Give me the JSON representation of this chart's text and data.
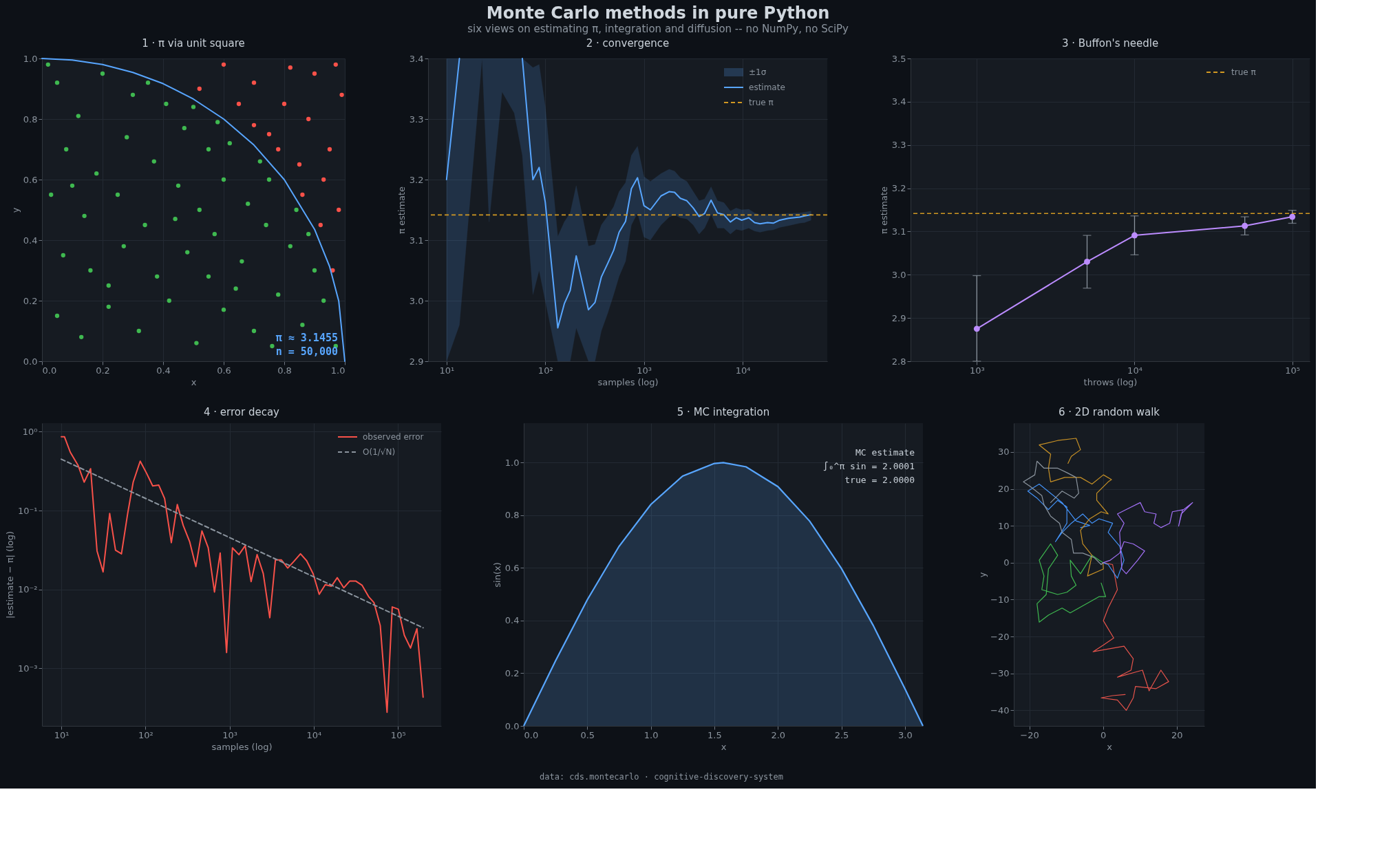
{
  "chart_data": [
    {
      "type": "other",
      "title": "Monte Carlo methods in pure Python",
      "subtitle": "six views on estimating π, integration and diffusion -- no NumPy, no SciPy",
      "annotations": [
        "data: cds.montecarlo  ·  cognitive-discovery-system"
      ]
    },
    {
      "type": "scatter",
      "title": "1 · π via unit square",
      "xlabel": "x",
      "ylabel": "y",
      "xlim": [
        0,
        1
      ],
      "ylim": [
        0,
        1
      ],
      "xticks": [
        {
          "value": 0,
          "label": "0.0"
        },
        0.2,
        0.4,
        0.6,
        0.8,
        {
          "value": 1,
          "label": "1.0"
        }
      ],
      "yticks": [
        {
          "value": 0,
          "label": "0.0"
        },
        0.2,
        0.4,
        0.6,
        0.8,
        {
          "value": 1,
          "label": "1.0"
        }
      ],
      "grid": true,
      "annotations": [
        "π ≈ 3.1455",
        "n = 50,000"
      ],
      "series": [
        {
          "color": "#3fb950",
          "x": [
            0.05,
            0.12,
            0.2,
            0.3,
            0.41,
            0.08,
            0.18,
            0.28,
            0.37,
            0.47,
            0.55,
            0.62,
            0.03,
            0.14,
            0.25,
            0.34,
            0.45,
            0.52,
            0.6,
            0.68,
            0.75,
            0.07,
            0.16,
            0.27,
            0.38,
            0.48,
            0.57,
            0.66,
            0.74,
            0.82,
            0.88,
            0.05,
            0.13,
            0.22,
            0.32,
            0.42,
            0.51,
            0.6,
            0.7,
            0.78,
            0.86,
            0.93,
            0.97,
            0.9,
            0.84,
            0.72,
            0.58,
            0.5,
            0.02,
            0.35,
            0.22,
            0.44,
            0.64,
            0.1,
            0.76,
            0.55
          ],
          "values": [
            0.92,
            0.81,
            0.95,
            0.88,
            0.85,
            0.7,
            0.62,
            0.74,
            0.66,
            0.77,
            0.7,
            0.72,
            0.55,
            0.48,
            0.55,
            0.45,
            0.58,
            0.5,
            0.6,
            0.52,
            0.6,
            0.35,
            0.3,
            0.38,
            0.28,
            0.36,
            0.42,
            0.33,
            0.45,
            0.38,
            0.42,
            0.15,
            0.08,
            0.18,
            0.1,
            0.2,
            0.06,
            0.17,
            0.1,
            0.22,
            0.12,
            0.2,
            0.05,
            0.3,
            0.5,
            0.66,
            0.79,
            0.84,
            0.98,
            0.92,
            0.25,
            0.47,
            0.24,
            0.58,
            0.05,
            0.28
          ]
        },
        {
          "color": "#f85149",
          "x": [
            0.9,
            0.8,
            0.7,
            0.95,
            0.85,
            0.98,
            0.92,
            0.6,
            0.75,
            0.88,
            0.96,
            0.65,
            0.82,
            0.99,
            0.93,
            0.78,
            0.52,
            0.97,
            0.86,
            0.7
          ],
          "values": [
            0.95,
            0.85,
            0.92,
            0.7,
            0.65,
            0.5,
            0.45,
            0.98,
            0.75,
            0.8,
            0.3,
            0.85,
            0.97,
            0.88,
            0.6,
            0.7,
            0.9,
            0.98,
            0.55,
            0.78
          ]
        },
        {
          "type": "line",
          "color": "#58a6ff",
          "x": [
            0,
            0.1,
            0.2,
            0.3,
            0.4,
            0.5,
            0.6,
            0.7,
            0.8,
            0.9,
            0.95,
            0.98,
            1.0
          ],
          "values": [
            1,
            0.995,
            0.98,
            0.954,
            0.917,
            0.866,
            0.8,
            0.714,
            0.6,
            0.436,
            0.312,
            0.199,
            0
          ]
        }
      ]
    },
    {
      "type": "line",
      "title": "2 · convergence",
      "xlabel": "samples (log)",
      "ylabel": "π estimate",
      "log": "x",
      "xlim": [
        6.5,
        72000
      ],
      "ylim": [
        2.9,
        3.4
      ],
      "xticks": [
        {
          "value": 10,
          "label": "10¹"
        },
        {
          "value": 100,
          "label": "10²"
        },
        {
          "value": 1000,
          "label": "10³"
        },
        {
          "value": 10000,
          "label": "10⁴"
        }
      ],
      "yticks": [
        2.9,
        {
          "value": 3,
          "label": "3.0"
        },
        3.1,
        3.2,
        3.3,
        3.4
      ],
      "grid": true,
      "legend": "top right",
      "annotations": [
        "±1σ"
      ],
      "x": [
        10,
        13.5,
        22.9,
        27,
        36.5,
        48.5,
        58.6,
        75,
        86.7,
        100,
        134,
        156,
        179,
        206,
        274,
        319,
        370,
        431,
        493,
        560,
        651,
        746,
        861,
        1000,
        1162,
        1489,
        1799,
        2043,
        2339,
        2722,
        3162,
        3622,
        4115,
        4786,
        5559,
        6457,
        7510,
        8600,
        9780,
        11530,
        13200,
        15000,
        17860,
        20430,
        23770,
        29110,
        37880,
        42400,
        49300
      ],
      "series": [
        {
          "name": "estimate",
          "color": "#58a6ff",
          "upper": [
            3.4,
            3.4,
            3.4,
            3.4,
            3.4,
            3.4,
            3.4,
            3.385,
            3.39,
            3.321,
            3.106,
            3.13,
            3.145,
            3.19,
            3.09,
            3.093,
            3.125,
            3.14,
            3.155,
            3.18,
            3.195,
            3.24,
            3.255,
            3.205,
            3.197,
            3.21,
            3.217,
            3.214,
            3.203,
            3.197,
            3.18,
            3.165,
            3.168,
            3.188,
            3.165,
            3.162,
            3.148,
            3.153,
            3.15,
            3.151,
            3.145,
            3.142,
            3.143,
            3.142,
            3.143,
            3.144,
            3.145,
            3.146,
            3.148
          ],
          "lower": [
            2.9,
            2.96,
            3.4,
            3.13,
            3.345,
            3.31,
            3.24,
            3.01,
            3.05,
            3.0,
            2.9,
            2.9,
            2.9,
            2.955,
            2.9,
            2.9,
            2.95,
            2.98,
            3.01,
            3.04,
            3.065,
            3.125,
            3.145,
            3.105,
            3.1,
            3.125,
            3.138,
            3.142,
            3.137,
            3.135,
            3.125,
            3.11,
            3.12,
            3.143,
            3.12,
            3.12,
            3.11,
            3.118,
            3.116,
            3.12,
            3.115,
            3.113,
            3.116,
            3.117,
            3.121,
            3.124,
            3.128,
            3.129,
            3.133
          ],
          "values": [
            3.2,
            3.4,
            null,
            null,
            null,
            null,
            3.4,
            3.2,
            3.22,
            3.163,
            2.955,
            2.995,
            3.017,
            3.074,
            2.985,
            2.997,
            3.039,
            3.062,
            3.083,
            3.113,
            3.131,
            3.185,
            3.203,
            3.157,
            3.15,
            3.173,
            3.18,
            3.179,
            3.169,
            3.165,
            3.153,
            3.139,
            3.144,
            3.166,
            3.145,
            3.142,
            3.13,
            3.137,
            3.133,
            3.137,
            3.129,
            3.127,
            3.129,
            3.128,
            3.133,
            3.136,
            3.138,
            3.14,
            3.142
          ]
        }
      ],
      "ref_lines": [
        {
          "axis": "y",
          "value": 3.1416,
          "label": "true π",
          "color": "#d29922",
          "line_style": "dashed"
        }
      ]
    },
    {
      "type": "line",
      "title": "3 · Buffon's needle",
      "xlabel": "throws (log)",
      "ylabel": "π estimate",
      "log": "x",
      "xlim": [
        380,
        129000
      ],
      "ylim": [
        2.8,
        3.5
      ],
      "xticks": [
        {
          "value": 1000,
          "label": "10³"
        },
        {
          "value": 10000,
          "label": "10⁴"
        },
        {
          "value": 100000,
          "label": "10⁵"
        }
      ],
      "yticks": [
        2.8,
        2.9,
        {
          "value": 3,
          "label": "3.0"
        },
        3.1,
        3.2,
        3.3,
        3.4,
        3.5
      ],
      "grid": true,
      "legend": "top right",
      "marker": "circle",
      "x": [
        1000,
        5000,
        10000,
        50000,
        100000
      ],
      "series": [
        {
          "color": "#bc8cff",
          "values": [
            2.875,
            3.03,
            3.091,
            3.113,
            3.134
          ],
          "errors": [
            [
              2.8,
              2.998
            ],
            0.061,
            0.045,
            0.021,
            0.015
          ]
        }
      ],
      "ref_lines": [
        {
          "axis": "y",
          "value": 3.1416,
          "label": "true π",
          "color": "#d29922",
          "line_style": "dashed"
        }
      ]
    },
    {
      "type": "line",
      "title": "4 · error decay",
      "xlabel": "samples (log)",
      "ylabel": "|estimate − π| (log)",
      "log": "xy",
      "xlim": [
        5.9,
        326000
      ],
      "ylim": [
        0.000187,
        1.28
      ],
      "xticks": [
        {
          "value": 10,
          "label": "10¹"
        },
        {
          "value": 100,
          "label": "10²"
        },
        {
          "value": 1000,
          "label": "10³"
        },
        {
          "value": 10000,
          "label": "10⁴"
        },
        {
          "value": 100000,
          "label": "10⁵"
        }
      ],
      "yticks": [
        {
          "value": 0.001,
          "label": "10⁻³"
        },
        {
          "value": 0.01,
          "label": "10⁻²"
        },
        {
          "value": 0.1,
          "label": "10⁻¹"
        },
        {
          "value": 1,
          "label": "10⁰"
        }
      ],
      "grid": true,
      "legend": "top right",
      "series": [
        {
          "name": "observed error",
          "color": "#f85149",
          "x": [
            10,
            10.9,
            12.8,
            15.9,
            18.7,
            22.3,
            26.6,
            31.4,
            37.6,
            44.1,
            51.9,
            61.5,
            71.5,
            86.6,
            103,
            122,
            144,
            169,
            203,
            239,
            281,
            336,
            397,
            469,
            557,
            661,
            773,
            920,
            1080,
            1290,
            1530,
            1800,
            2120,
            2510,
            3000,
            3500,
            4130,
            4900,
            5780,
            6950,
            8230,
            9830,
            11600,
            13700,
            16200,
            19000,
            22700,
            26800,
            31400,
            37500,
            44800,
            51900,
            61600,
            74200,
            85500,
            101000,
            119000,
            141000,
            168000,
            199000
          ],
          "values": [
            0.862,
            0.862,
            0.548,
            0.37,
            0.229,
            0.339,
            0.0308,
            0.0167,
            0.0917,
            0.0315,
            0.0283,
            0.0917,
            0.229,
            0.422,
            0.298,
            0.205,
            0.21,
            0.142,
            0.0392,
            0.119,
            0.0648,
            0.04,
            0.0195,
            0.0552,
            0.0337,
            0.00928,
            0.029,
            0.00159,
            0.0337,
            0.0276,
            0.0359,
            0.0126,
            0.0277,
            0.0159,
            0.00439,
            0.0237,
            0.0237,
            0.0187,
            0.0226,
            0.0283,
            0.0231,
            0.0158,
            0.00868,
            0.0115,
            0.011,
            0.0141,
            0.0105,
            0.0128,
            0.0128,
            0.0113,
            0.00813,
            0.00682,
            0.00349,
            0.000278,
            0.00601,
            0.00563,
            0.00263,
            0.00181,
            0.00319,
            0.000433
          ]
        },
        {
          "name": "O(1/√N)",
          "color": "#8b949e",
          "line_style": "dashed",
          "x": [
            10,
            199000
          ],
          "values": [
            0.448,
            0.00327
          ]
        }
      ]
    },
    {
      "type": "area",
      "title": "5 · MC integration",
      "xlabel": "x",
      "ylabel": "sin(x)",
      "xlim": [
        0,
        3.1416
      ],
      "ylim": [
        0,
        1.15
      ],
      "xticks": [
        {
          "value": 0,
          "label": "0.0"
        },
        0.5,
        {
          "value": 1,
          "label": "1.0"
        },
        1.5,
        {
          "value": 2,
          "label": "2.0"
        },
        2.5,
        {
          "value": 3,
          "label": "3.0"
        }
      ],
      "yticks": [
        {
          "value": 0,
          "label": "0.0"
        },
        0.2,
        0.4,
        0.6,
        0.8,
        {
          "value": 1,
          "label": "1.0"
        }
      ],
      "grid": true,
      "annotations": [
        "MC estimate",
        "∫₀^π sin = 2.0001",
        "true = 2.0000"
      ],
      "x": [
        0,
        0.25,
        0.5,
        0.75,
        1,
        1.25,
        1.5,
        1.5708,
        1.75,
        2,
        2.25,
        2.5,
        2.75,
        3.0,
        3.1416
      ],
      "series": [
        {
          "color": "#58a6ff",
          "values": [
            0,
            0.247,
            0.479,
            0.682,
            0.841,
            0.949,
            0.997,
            1.0,
            0.984,
            0.909,
            0.778,
            0.598,
            0.382,
            0.141,
            0
          ]
        }
      ]
    },
    {
      "type": "line",
      "title": "6 · 2D random walk",
      "xlabel": "x",
      "ylabel": "y",
      "xlim": [
        -24.2,
        27.5
      ],
      "ylim": [
        -44.2,
        37.8
      ],
      "xticks": [
        -20,
        0,
        20
      ],
      "yticks": [
        -40,
        -30,
        -20,
        -10,
        0,
        10,
        20,
        30
      ],
      "grid": true,
      "series": [
        {
          "color": "#e5534b",
          "x": [
            0,
            2.6,
            3.9,
            1.4,
            0.1,
            1.4,
            2.9,
            0.1,
            -2.7,
            0.7,
            5.7,
            8.2,
            7.6,
            3.9,
            10.7,
            12.5,
            15.7,
            17.8,
            14.4,
            8.8,
            8.2,
            6.3,
            3.9,
            -0.5,
            2.6,
            6
          ],
          "values": [
            0,
            -0.5,
            -7.3,
            -12.3,
            -15.7,
            -17.9,
            -20.4,
            -22.3,
            -24.1,
            -23.5,
            -22.6,
            -26,
            -29.1,
            -31,
            -29.1,
            -34.7,
            -29.1,
            -32.2,
            -34.1,
            -33.5,
            -36.6,
            -40,
            -37.2,
            -36.6,
            -36,
            -35.7
          ]
        },
        {
          "color": "#3fb950",
          "x": [
            0,
            -1.1,
            -3,
            -6.1,
            -8.9,
            -8.6,
            -7.3,
            -9.8,
            -12.3,
            -16.6,
            -16,
            -17.3,
            -14.2,
            -12.3,
            -14.8,
            -15.4,
            -17.9,
            -17.3,
            -14.8,
            -11.1,
            -8.9,
            -1.1,
            0.7,
            -0.5
          ],
          "values": [
            0,
            0.7,
            2,
            -3,
            0.7,
            -3.6,
            -6.1,
            -8,
            -8.6,
            -7.3,
            -3.6,
            0.7,
            5.1,
            2,
            -1.7,
            -8.6,
            -11.1,
            -16.1,
            -14.2,
            -12.3,
            -13.6,
            -9.2,
            -9.2,
            -5.5
          ]
        },
        {
          "color": "#4493f8",
          "x": [
            0,
            1.4,
            3.9,
            5.7,
            4.5,
            1.4,
            2.6,
            -1.1,
            -3,
            -5.5,
            -8.6,
            -11.1,
            -12.9,
            -9.8,
            -9.8,
            -12.3,
            -14.8,
            -17.9,
            -20.4,
            -17.3,
            -14.2,
            -11.1,
            -7.3,
            -3.6,
            -6.1
          ],
          "values": [
            0,
            -0.5,
            -4.2,
            0.7,
            4.5,
            8.2,
            10.7,
            11.9,
            10.7,
            13.2,
            10.7,
            8.2,
            5.7,
            10.7,
            15.1,
            16.9,
            14.4,
            17.5,
            19.4,
            21.3,
            18.8,
            16.3,
            11.3,
            10.1,
            9.5
          ]
        },
        {
          "color": "#c69026",
          "x": [
            0,
            0.1,
            -4.2,
            -3,
            -5.5,
            -6.1,
            -3.6,
            -0.5,
            1.4,
            -1.7,
            -1.7,
            1.4,
            2.3,
            0.1,
            -3,
            -6.1,
            -10.4,
            -14.2,
            -14.8,
            -14.2,
            -17.3,
            -12.3,
            -7.3,
            -6.1,
            -8.6,
            -9.5
          ],
          "values": [
            0,
            -1.7,
            -3.6,
            2,
            5.1,
            8.8,
            11.9,
            13.8,
            13.2,
            16.9,
            18.8,
            21.9,
            22.5,
            23.8,
            21.3,
            23.1,
            23.1,
            21.9,
            25.6,
            29.4,
            31.9,
            33.1,
            33.7,
            30.6,
            28.8,
            26.9
          ]
        },
        {
          "color": "#8b949e",
          "x": [
            0,
            -0.5,
            -2.4,
            -5.5,
            -8,
            -8.6,
            -11.1,
            -11.8,
            -14.2,
            -16,
            -16.6,
            -19.8,
            -21.6,
            -18.5,
            -17.9,
            -16,
            -12.3,
            -9.8,
            -7.3,
            -6.6,
            -7.8,
            -11.1,
            -14.2
          ],
          "values": [
            0,
            -0.5,
            1.4,
            2.6,
            2.6,
            6.3,
            8.2,
            10.7,
            12.6,
            15.7,
            18.2,
            20.7,
            21.9,
            23.8,
            27.5,
            25.6,
            25.6,
            24.4,
            23.1,
            18.8,
            17.5,
            19.4,
            16.3
          ]
        },
        {
          "color": "#a371f7",
          "x": [
            0,
            2,
            4.5,
            5.7,
            8.2,
            11.3,
            9.4,
            6.3,
            5.1,
            4.5,
            5.7,
            3.9,
            6.3,
            10.1,
            11.3,
            14.4,
            13.8,
            15.7,
            18.1,
            18.8,
            21.9,
            24.3,
            21.2,
            20.5,
            21.6
          ],
          "values": [
            0,
            0.7,
            2.6,
            5.7,
            5.1,
            3.2,
            0.7,
            -3,
            -1.7,
            8.2,
            10.7,
            13.2,
            14.4,
            16.3,
            13.8,
            13.2,
            10.7,
            9.5,
            10.7,
            13.8,
            14.4,
            16.3,
            13.2,
            9.9,
            14.4
          ]
        }
      ]
    }
  ]
}
